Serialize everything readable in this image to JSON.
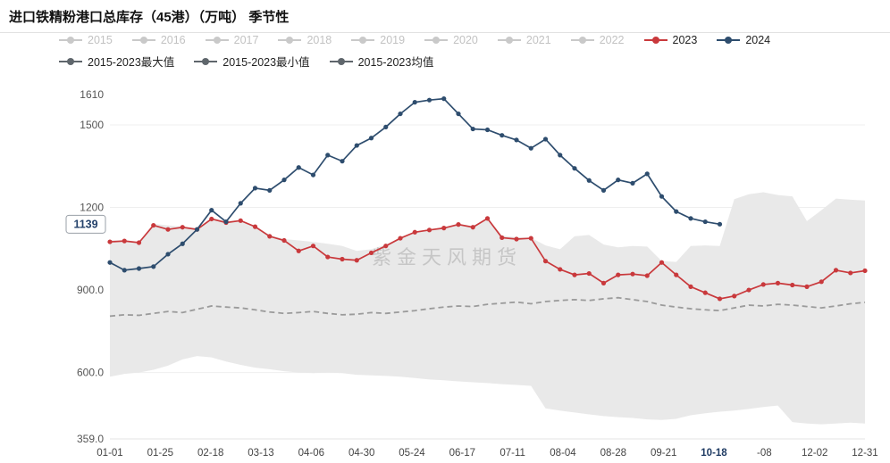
{
  "title": "进口铁精粉港口总库存（45港）（万吨） 季节性",
  "watermark": "紫金天风期货",
  "legend": {
    "row1": [
      {
        "label": "2015",
        "color": "#c9c9c9",
        "label_color": "#c2c2c2",
        "active": false
      },
      {
        "label": "2016",
        "color": "#c9c9c9",
        "label_color": "#c2c2c2",
        "active": false
      },
      {
        "label": "2017",
        "color": "#c9c9c9",
        "label_color": "#c2c2c2",
        "active": false
      },
      {
        "label": "2018",
        "color": "#c9c9c9",
        "label_color": "#c2c2c2",
        "active": false
      },
      {
        "label": "2019",
        "color": "#c9c9c9",
        "label_color": "#c2c2c2",
        "active": false
      },
      {
        "label": "2020",
        "color": "#c9c9c9",
        "label_color": "#c2c2c2",
        "active": false
      },
      {
        "label": "2021",
        "color": "#c9c9c9",
        "label_color": "#c2c2c2",
        "active": false
      },
      {
        "label": "2022",
        "color": "#c9c9c9",
        "label_color": "#c2c2c2",
        "active": false
      },
      {
        "label": "2023",
        "color": "#c9393c",
        "label_color": "#222222",
        "active": true
      },
      {
        "label": "2024",
        "color": "#2e4d6e",
        "label_color": "#222222",
        "active": true
      }
    ],
    "row2": [
      {
        "label": "2015-2023最大值",
        "color": "#5f666c",
        "label_color": "#222222",
        "active": true
      },
      {
        "label": "2015-2023最小值",
        "color": "#5f666c",
        "label_color": "#222222",
        "active": true
      },
      {
        "label": "2015-2023均值",
        "color": "#5f666c",
        "label_color": "#222222",
        "active": true
      }
    ]
  },
  "chart_data": {
    "type": "line",
    "title": "进口铁精粉港口总库存（45港）（万吨） 季节性",
    "ylim": [
      359,
      1610
    ],
    "y_ticks": [
      {
        "v": 1610,
        "label": "1610",
        "grid": false
      },
      {
        "v": 1500,
        "label": "1500",
        "grid": true
      },
      {
        "v": 1200,
        "label": "1200",
        "grid": true
      },
      {
        "v": 900,
        "label": "900.0",
        "grid": true
      },
      {
        "v": 600,
        "label": "600.0",
        "grid": true
      },
      {
        "v": 359,
        "label": "359.0",
        "grid": false
      }
    ],
    "x_ticks": [
      "01-01",
      "01-25",
      "02-18",
      "03-13",
      "04-06",
      "04-30",
      "05-24",
      "06-17",
      "07-11",
      "08-04",
      "08-28",
      "09-21",
      "10-18",
      "-08",
      "12-02",
      "12-31"
    ],
    "highlight_tick": "10-18",
    "current_value": {
      "v": 1139,
      "label": "1139"
    },
    "n_points": 53,
    "series": [
      {
        "name": "2015-2023最大值",
        "role": "max",
        "color": "#e9e9e9",
        "values": [
          1082,
          1078,
          1075,
          1140,
          1135,
          1130,
          1125,
          1160,
          1150,
          1155,
          1132,
          1100,
          1085,
          1080,
          1075,
          1068,
          1060,
          1042,
          1048,
          1065,
          1090,
          1112,
          1120,
          1128,
          1140,
          1132,
          1162,
          1098,
          1092,
          1090,
          1062,
          1048,
          1095,
          1100,
          1065,
          1055,
          1060,
          1058,
          1005,
          1002,
          1060,
          1062,
          1060,
          1230,
          1248,
          1255,
          1245,
          1240,
          1150,
          1190,
          1232,
          1228,
          1225
        ]
      },
      {
        "name": "2015-2023最小值",
        "role": "min",
        "color": "#e9e9e9",
        "values": [
          585,
          595,
          600,
          610,
          625,
          648,
          660,
          655,
          640,
          628,
          618,
          612,
          605,
          600,
          598,
          600,
          598,
          592,
          590,
          588,
          585,
          580,
          575,
          572,
          568,
          565,
          562,
          558,
          555,
          552,
          470,
          462,
          455,
          448,
          442,
          438,
          435,
          430,
          428,
          432,
          445,
          452,
          458,
          462,
          468,
          475,
          480,
          420,
          415,
          412,
          415,
          418,
          415
        ]
      },
      {
        "name": "2015-2023均值",
        "role": "mean",
        "color": "#9b9b9b",
        "style": "dashed",
        "values": [
          805,
          810,
          808,
          815,
          822,
          818,
          830,
          842,
          838,
          835,
          828,
          820,
          815,
          818,
          822,
          815,
          810,
          812,
          818,
          815,
          820,
          825,
          832,
          838,
          842,
          840,
          848,
          852,
          856,
          850,
          858,
          862,
          865,
          862,
          868,
          872,
          865,
          858,
          845,
          838,
          832,
          828,
          825,
          835,
          845,
          842,
          848,
          845,
          840,
          835,
          842,
          850,
          855
        ]
      },
      {
        "name": "2023",
        "role": "y2023",
        "color": "#c9393c",
        "markers": true,
        "values": [
          1075,
          1078,
          1072,
          1135,
          1120,
          1128,
          1120,
          1158,
          1145,
          1152,
          1130,
          1095,
          1080,
          1042,
          1060,
          1020,
          1012,
          1008,
          1035,
          1060,
          1088,
          1110,
          1118,
          1125,
          1138,
          1128,
          1160,
          1090,
          1085,
          1088,
          1005,
          975,
          955,
          960,
          925,
          955,
          958,
          952,
          1000,
          955,
          912,
          890,
          868,
          878,
          900,
          920,
          925,
          918,
          912,
          930,
          972,
          962,
          970
        ]
      },
      {
        "name": "2024",
        "role": "y2024",
        "color": "#2e4d6e",
        "markers": true,
        "values": [
          1000,
          972,
          978,
          985,
          1030,
          1068,
          1120,
          1190,
          1148,
          1215,
          1270,
          1262,
          1300,
          1345,
          1318,
          1390,
          1368,
          1425,
          1452,
          1492,
          1540,
          1582,
          1590,
          1595,
          1540,
          1485,
          1482,
          1462,
          1445,
          1415,
          1448,
          1390,
          1342,
          1298,
          1262,
          1300,
          1288,
          1322,
          1240,
          1185,
          1160,
          1148,
          1139
        ]
      }
    ]
  }
}
